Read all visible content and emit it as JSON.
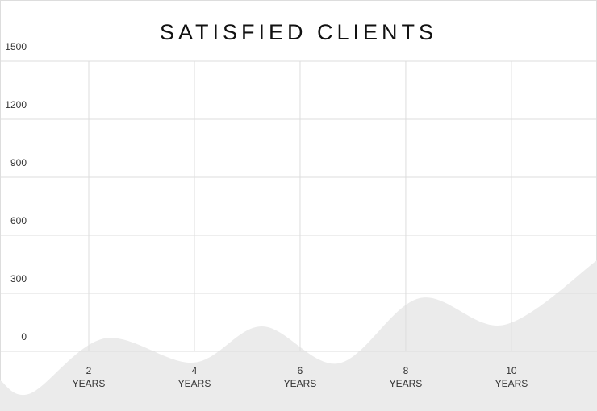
{
  "chart_data": {
    "type": "area",
    "title": "SATISFIED CLIENTS",
    "x": [
      0.32,
      0.9,
      2.3,
      3.98,
      5.28,
      6.73,
      8.26,
      9.86,
      11.62
    ],
    "values": [
      -150,
      -217,
      67,
      -58,
      129,
      -62,
      275,
      137,
      471
    ],
    "color": "#ebebeb",
    "xlim": [
      0.32,
      11.62
    ],
    "xticks": [
      {
        "value": 2,
        "label": "2\nYEARS"
      },
      {
        "value": 4,
        "label": "4\nYEARS"
      },
      {
        "value": 6,
        "label": "6\nYEARS"
      },
      {
        "value": 8,
        "label": "8\nYEARS"
      },
      {
        "value": 10,
        "label": "10\nYEARS"
      }
    ],
    "ylim": [
      -300,
      1500
    ],
    "yticks": [
      0,
      300,
      600,
      900,
      1200,
      1500
    ],
    "grid": true
  }
}
